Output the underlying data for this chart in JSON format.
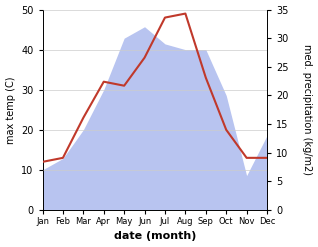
{
  "months": [
    "Jan",
    "Feb",
    "Mar",
    "Apr",
    "May",
    "Jun",
    "Jul",
    "Aug",
    "Sep",
    "Oct",
    "Nov",
    "Dec"
  ],
  "temp": [
    12,
    13,
    23,
    32,
    31,
    38,
    48,
    49,
    33,
    20,
    13,
    13
  ],
  "precip": [
    7,
    9,
    14,
    21,
    30,
    32,
    29,
    28,
    28,
    20,
    6,
    13
  ],
  "temp_color": "#c0392b",
  "precip_fill_color": "#b8c4f0",
  "temp_ylim": [
    0,
    50
  ],
  "precip_ylim": [
    0,
    35
  ],
  "xlabel": "date (month)",
  "ylabel_left": "max temp (C)",
  "ylabel_right": "med. precipitation (kg/m2)"
}
